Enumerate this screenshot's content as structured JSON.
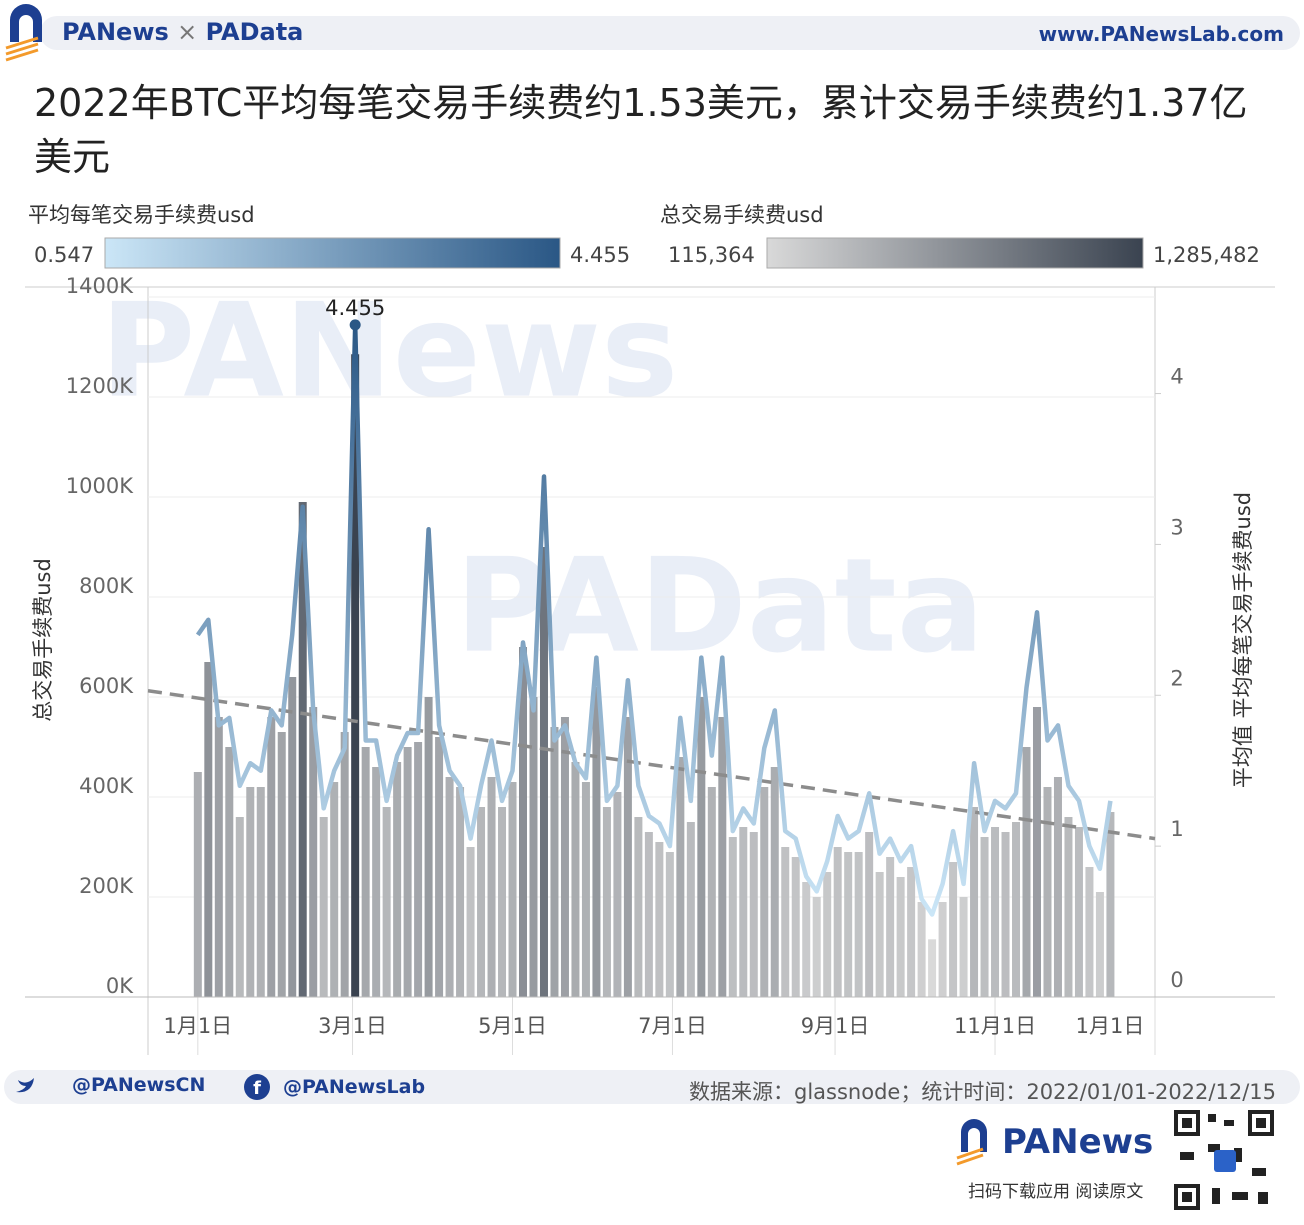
{
  "header": {
    "brand": "PANews",
    "times": "×",
    "brand2": "PAData",
    "url": "www.PANewsLab.com"
  },
  "chart_data": {
    "type": "combo",
    "title": "2022年BTC平均每笔交易手续费约1.53美元，累计交易手续费约1.37亿美元",
    "x": [
      "2022-01-01",
      "2022-01-05",
      "2022-01-09",
      "2022-01-13",
      "2022-01-17",
      "2022-01-21",
      "2022-01-25",
      "2022-01-29",
      "2022-02-02",
      "2022-02-06",
      "2022-02-10",
      "2022-02-14",
      "2022-02-18",
      "2022-02-22",
      "2022-02-26",
      "2022-03-02",
      "2022-03-06",
      "2022-03-10",
      "2022-03-14",
      "2022-03-18",
      "2022-03-22",
      "2022-03-26",
      "2022-03-30",
      "2022-04-03",
      "2022-04-07",
      "2022-04-11",
      "2022-04-15",
      "2022-04-19",
      "2022-04-23",
      "2022-04-27",
      "2022-05-01",
      "2022-05-05",
      "2022-05-09",
      "2022-05-13",
      "2022-05-17",
      "2022-05-21",
      "2022-05-25",
      "2022-05-29",
      "2022-06-02",
      "2022-06-06",
      "2022-06-10",
      "2022-06-14",
      "2022-06-18",
      "2022-06-22",
      "2022-06-26",
      "2022-06-30",
      "2022-07-04",
      "2022-07-08",
      "2022-07-12",
      "2022-07-16",
      "2022-07-20",
      "2022-07-24",
      "2022-07-28",
      "2022-08-01",
      "2022-08-05",
      "2022-08-09",
      "2022-08-13",
      "2022-08-17",
      "2022-08-21",
      "2022-08-25",
      "2022-08-29",
      "2022-09-02",
      "2022-09-06",
      "2022-09-10",
      "2022-09-14",
      "2022-09-18",
      "2022-09-22",
      "2022-09-26",
      "2022-09-30",
      "2022-10-04",
      "2022-10-08",
      "2022-10-12",
      "2022-10-16",
      "2022-10-20",
      "2022-10-24",
      "2022-10-28",
      "2022-11-01",
      "2022-11-05",
      "2022-11-09",
      "2022-11-13",
      "2022-11-17",
      "2022-11-21",
      "2022-11-25",
      "2022-11-29",
      "2022-12-03",
      "2022-12-07",
      "2022-12-11",
      "2022-12-15"
    ],
    "xlim": [
      "2021-12-13",
      "2023-01-01"
    ],
    "xticks": [
      {
        "value": "2022-01-01",
        "label": "1月1日"
      },
      {
        "value": "2022-03-01",
        "label": "3月1日"
      },
      {
        "value": "2022-05-01",
        "label": "5月1日"
      },
      {
        "value": "2022-07-01",
        "label": "7月1日"
      },
      {
        "value": "2022-09-01",
        "label": "9月1日"
      },
      {
        "value": "2022-11-01",
        "label": "11月1日"
      },
      {
        "value": "2023-01-01",
        "label": "1月1日"
      }
    ],
    "series": [
      {
        "name": "平均每笔交易手续费usd",
        "type": "line",
        "axis": "y2",
        "colors": [
          "#cbe6f7",
          "#2a5785"
        ],
        "color_range": [
          0.547,
          4.455
        ],
        "values": [
          2.4,
          2.5,
          1.8,
          1.85,
          1.4,
          1.55,
          1.5,
          1.9,
          1.8,
          2.4,
          3.25,
          1.9,
          1.25,
          1.5,
          1.65,
          4.455,
          1.7,
          1.7,
          1.3,
          1.6,
          1.75,
          1.75,
          3.1,
          1.8,
          1.5,
          1.4,
          1.05,
          1.4,
          1.7,
          1.3,
          1.5,
          2.35,
          1.9,
          3.45,
          1.7,
          1.8,
          1.55,
          1.45,
          2.25,
          1.3,
          1.4,
          2.1,
          1.4,
          1.2,
          1.15,
          1.0,
          1.85,
          1.3,
          2.25,
          1.6,
          2.25,
          1.1,
          1.25,
          1.15,
          1.65,
          1.9,
          1.1,
          1.05,
          0.8,
          0.7,
          0.9,
          1.2,
          1.05,
          1.1,
          1.35,
          0.95,
          1.05,
          0.9,
          1.0,
          0.65,
          0.547,
          0.75,
          1.1,
          0.75,
          1.55,
          1.1,
          1.3,
          1.25,
          1.35,
          2.05,
          2.55,
          1.7,
          1.8,
          1.4,
          1.3,
          1.0,
          0.85,
          1.3
        ]
      },
      {
        "name": "总交易手续费usd",
        "type": "bar",
        "colors": [
          "#d9d9d9",
          "#3a4350"
        ],
        "color_range": [
          {
            "value": 115364,
            "label": "115,364"
          },
          {
            "value": 1285482,
            "label": "1,285,482"
          }
        ],
        "values": [
          450000,
          670000,
          560000,
          500000,
          360000,
          420000,
          420000,
          560000,
          530000,
          640000,
          990000,
          580000,
          360000,
          430000,
          530000,
          1285482,
          500000,
          460000,
          380000,
          470000,
          500000,
          510000,
          600000,
          520000,
          440000,
          420000,
          300000,
          380000,
          440000,
          380000,
          430000,
          700000,
          600000,
          900000,
          540000,
          560000,
          470000,
          430000,
          620000,
          380000,
          410000,
          560000,
          360000,
          330000,
          310000,
          290000,
          480000,
          350000,
          600000,
          420000,
          560000,
          320000,
          340000,
          330000,
          420000,
          460000,
          300000,
          280000,
          230000,
          200000,
          250000,
          300000,
          290000,
          290000,
          330000,
          250000,
          280000,
          240000,
          260000,
          190000,
          115364,
          190000,
          270000,
          200000,
          380000,
          320000,
          340000,
          330000,
          350000,
          500000,
          580000,
          420000,
          440000,
          360000,
          340000,
          260000,
          210000,
          370000
        ]
      }
    ],
    "trend": {
      "x": [
        "2021-12-13",
        "2023-01-01"
      ],
      "values": [
        2.03,
        1.05
      ],
      "color": "#8c8c8c"
    },
    "ylim": [
      0,
      1400000
    ],
    "yticks": [
      {
        "value": 0,
        "label": "0K"
      },
      {
        "value": 200000,
        "label": "200K"
      },
      {
        "value": 400000,
        "label": "400K"
      },
      {
        "value": 600000,
        "label": "600K"
      },
      {
        "value": 800000,
        "label": "800K"
      },
      {
        "value": 1000000,
        "label": "1000K"
      },
      {
        "value": 1200000,
        "label": "1200K"
      },
      {
        "value": 1400000,
        "label": "1400K"
      }
    ],
    "y2lim": [
      0,
      4.64
    ],
    "y2ticks": [
      0,
      1,
      2,
      3,
      4
    ],
    "ylabel": "总交易手续费usd",
    "y2label": "平均值 平均每笔交易手续费usd",
    "grid": true,
    "watermarks": [
      "PANews",
      "PAData"
    ]
  },
  "footer": {
    "twitter": "@PANewsCN",
    "facebook": "@PANewsLab",
    "source": "数据来源：glassnode；统计时间：2022/01/01-2022/12/15",
    "app": "PANews",
    "app_note": "扫码下载应用  阅读原文"
  }
}
